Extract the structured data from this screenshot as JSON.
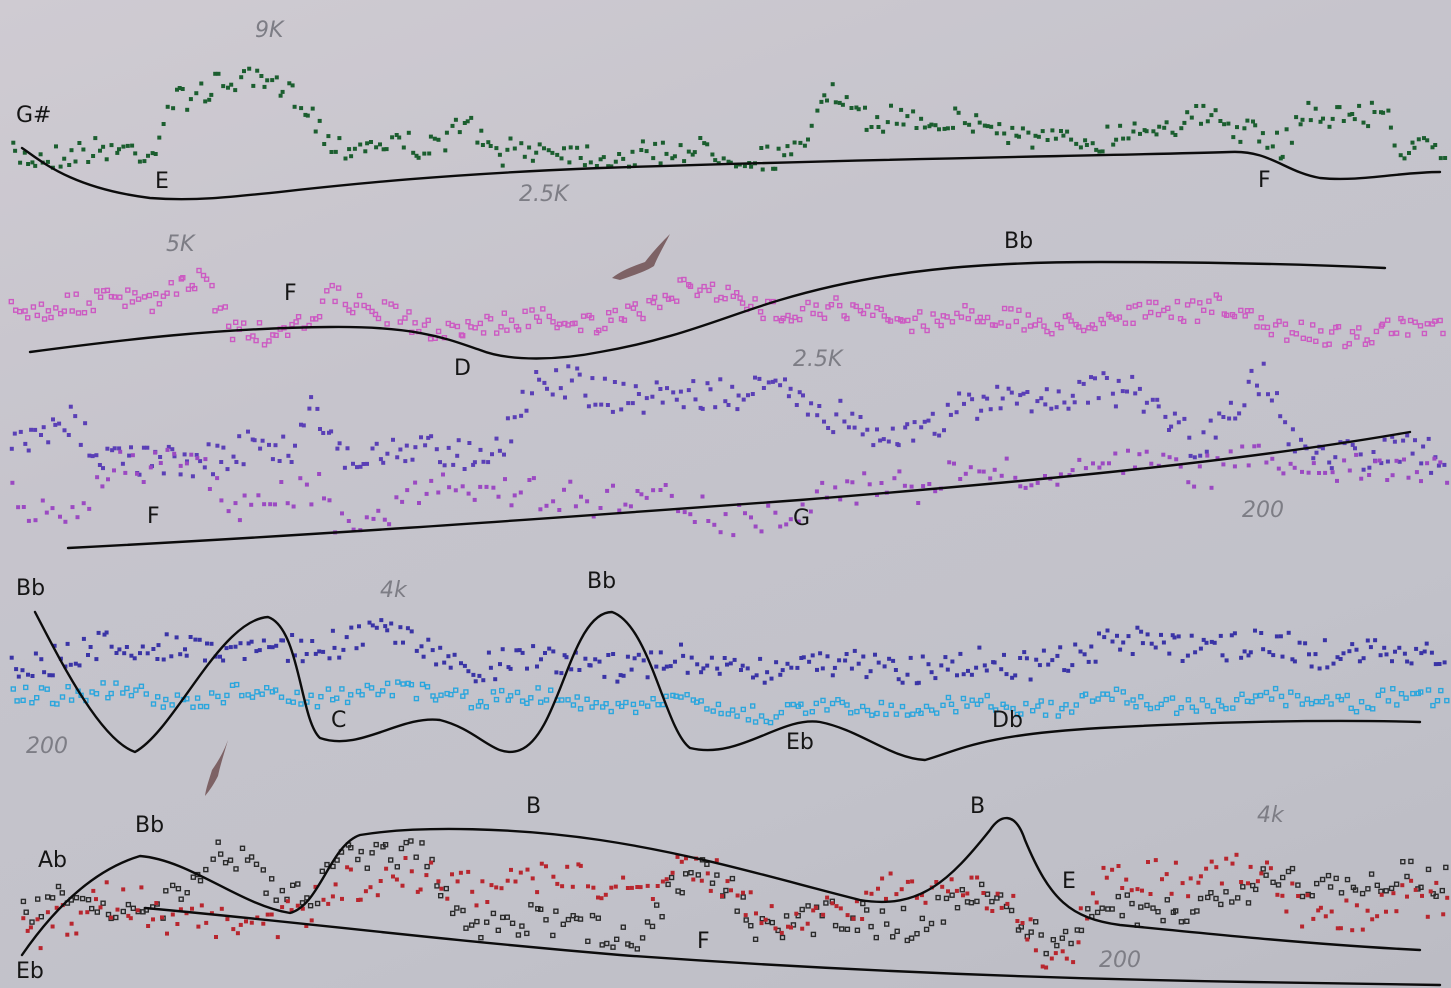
{
  "labels": {
    "g_sharp": "G#",
    "e_top": "E",
    "f_top": "F",
    "f_row2": "F",
    "bb_row2": "Bb",
    "d_row2": "D",
    "f_row3": "F",
    "g_row3": "G",
    "bb_row4_left": "Bb",
    "bb_row4_mid": "Bb",
    "c_row4": "C",
    "eb_row4": "Eb",
    "db_row4": "Db",
    "bb_row5": "Bb",
    "ab_row5": "Ab",
    "eb_row5": "Eb",
    "b_row5_left": "B",
    "b_row5_right": "B",
    "e_row5": "E",
    "f_row5": "F"
  },
  "frequencies": {
    "nine_k": "9K",
    "two_five_k_top": "2.5K",
    "five_k": "5K",
    "two_five_k_row2": "2.5K",
    "two_hundred_row3": "200",
    "four_k_row4": "4k",
    "two_hundred_row4": "200",
    "four_k_row5": "4k",
    "two_hundred_row5": "200"
  },
  "colors": {
    "green": "#1b5e2f",
    "pink": "#cc5ac2",
    "indigo": "#5a3fb6",
    "violet": "#9b49c2",
    "navy": "#3a34a6",
    "cyan": "#2ba6dd",
    "black_dots": "#2b2b2b",
    "red": "#b8262e",
    "bird": "#7d6265"
  }
}
